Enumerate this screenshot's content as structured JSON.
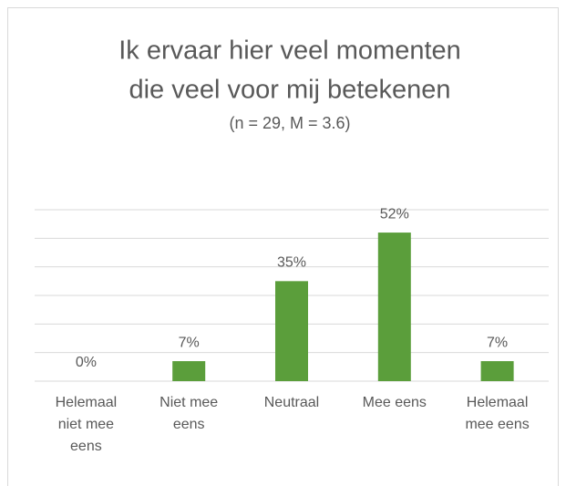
{
  "chart_data": {
    "type": "bar",
    "title": [
      "Ik ervaar hier veel momenten",
      "die veel voor mij betekenen"
    ],
    "subtitle": "(n = 29, M = 3.6)",
    "categories": [
      "Helemaal niet mee eens",
      "Niet mee eens",
      "Neutraal",
      "Mee eens",
      "Helemaal mee eens"
    ],
    "values": [
      0,
      7,
      35,
      52,
      7
    ],
    "value_labels": [
      "0%",
      "7%",
      "35%",
      "52%",
      "7%"
    ],
    "color": "#5b9e3b",
    "ylim": [
      0,
      60
    ],
    "yticks": [
      0,
      10,
      20,
      30,
      40,
      50,
      60
    ],
    "grid": true
  }
}
